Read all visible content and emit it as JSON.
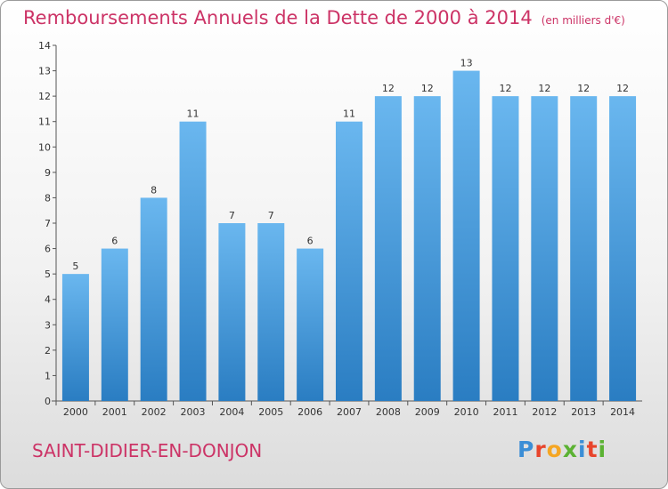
{
  "title": "Remboursements Annuels de la Dette de 2000 à 2014",
  "unit": "(en milliers d'€)",
  "town": "SAINT-DIDIER-EN-DONJON",
  "logo": {
    "letters": [
      "P",
      "r",
      "o",
      "x",
      "i",
      "t",
      "i"
    ],
    "colors": [
      "#3b8ed6",
      "#e8452c",
      "#f5a623",
      "#5bb233",
      "#3b8ed6",
      "#e8452c",
      "#5bb233"
    ]
  },
  "colors": {
    "bar_top": "#6ab7ef",
    "bar_bottom": "#2a7dc2",
    "title": "#cc3366"
  },
  "chart_data": {
    "type": "bar",
    "categories": [
      "2000",
      "2001",
      "2002",
      "2003",
      "2004",
      "2005",
      "2006",
      "2007",
      "2008",
      "2009",
      "2010",
      "2011",
      "2012",
      "2013",
      "2014"
    ],
    "values": [
      5,
      6,
      8,
      11,
      7,
      7,
      6,
      11,
      12,
      12,
      13,
      12,
      12,
      12,
      12
    ],
    "value_labels": [
      "5",
      "6",
      "8",
      "11",
      "7",
      "7",
      "6",
      "11",
      "12",
      "12",
      "13",
      "12",
      "12",
      "12",
      "12"
    ],
    "yticks": [
      "0",
      "1",
      "2",
      "3",
      "4",
      "5",
      "6",
      "7",
      "8",
      "9",
      "10",
      "11",
      "12",
      "13",
      "14"
    ],
    "ylim": [
      0,
      14
    ],
    "grid": false
  }
}
